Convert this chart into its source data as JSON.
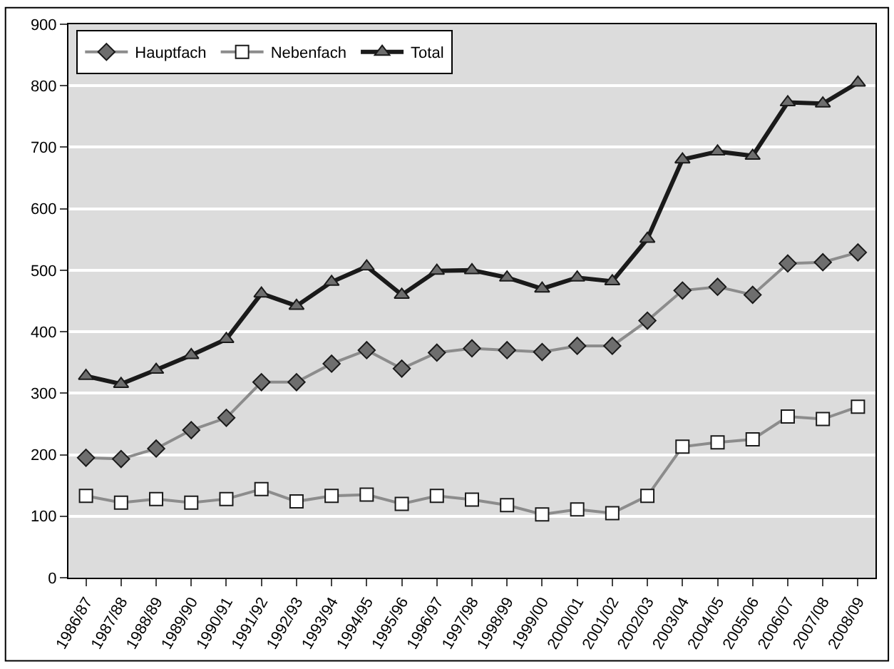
{
  "chart_data": {
    "type": "line",
    "categories": [
      "1986/87",
      "1987/88",
      "1988/89",
      "1989/90",
      "1990/91",
      "1991/92",
      "1992/93",
      "1993/94",
      "1994/95",
      "1995/96",
      "1996/97",
      "1997/98",
      "1998/99",
      "1999/00",
      "2000/01",
      "2001/02",
      "2002/03",
      "2003/04",
      "2004/05",
      "2005/06",
      "2006/07",
      "2007/08",
      "2008/09"
    ],
    "series": [
      {
        "name": "Hauptfach",
        "color": "#8c8c8c",
        "marker": "diamond",
        "values": [
          195,
          193,
          210,
          240,
          260,
          318,
          318,
          348,
          370,
          340,
          366,
          373,
          370,
          367,
          377,
          377,
          418,
          467,
          473,
          460,
          511,
          513,
          529
        ]
      },
      {
        "name": "Nebenfach",
        "color": "#8c8c8c",
        "marker": "square",
        "values": [
          133,
          122,
          128,
          122,
          128,
          144,
          124,
          133,
          135,
          120,
          133,
          127,
          118,
          103,
          111,
          105,
          133,
          213,
          220,
          225,
          262,
          258,
          278
        ]
      },
      {
        "name": "Total",
        "color": "#1a1a1a",
        "marker": "triangle",
        "values": [
          328,
          315,
          338,
          362,
          388,
          462,
          442,
          481,
          506,
          460,
          499,
          500,
          488,
          470,
          488,
          482,
          551,
          680,
          693,
          686,
          773,
          771,
          805
        ]
      }
    ],
    "ylim": [
      0,
      900
    ],
    "yticks": [
      0,
      100,
      200,
      300,
      400,
      500,
      600,
      700,
      800,
      900
    ],
    "grid": "y",
    "legend": "top left",
    "line_style": "solid"
  }
}
